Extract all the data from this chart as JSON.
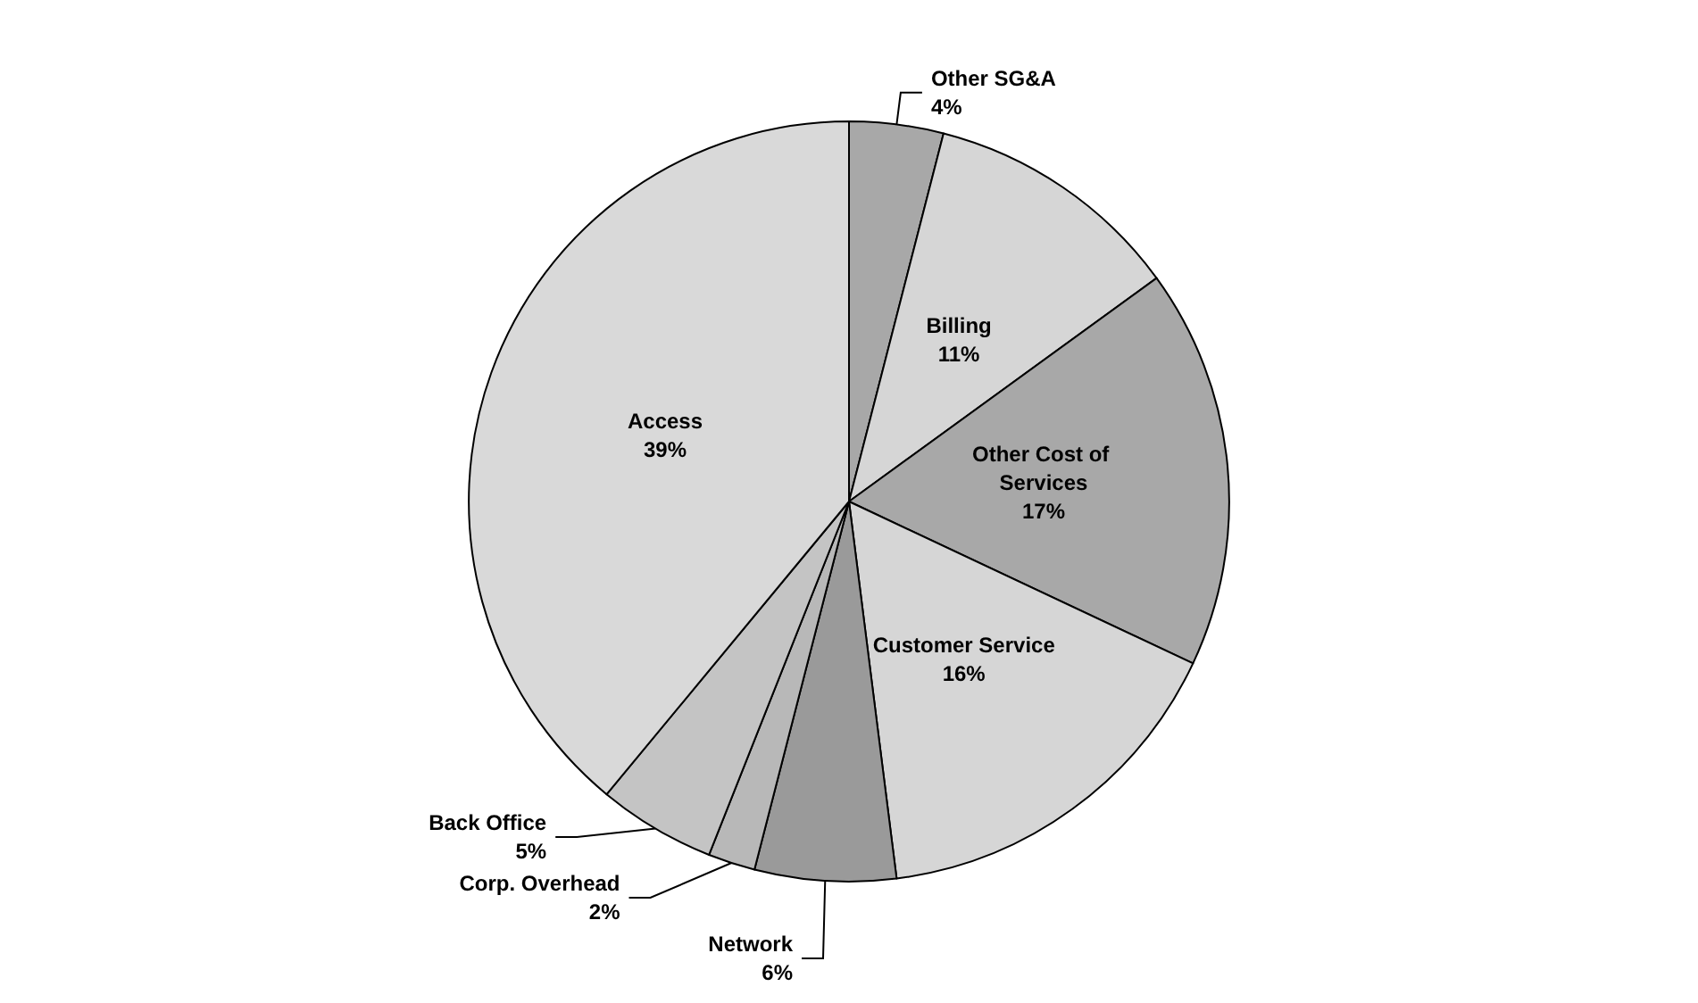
{
  "chart_data": {
    "type": "pie",
    "categories": [
      "Other SG&A",
      "Billing",
      "Other Cost of Services",
      "Customer Service",
      "Network",
      "Corp. Overhead",
      "Back Office",
      "Access"
    ],
    "values": [
      4,
      11,
      17,
      16,
      6,
      2,
      5,
      39
    ],
    "value_labels": [
      "4%",
      "11%",
      "17%",
      "16%",
      "6%",
      "2%",
      "5%",
      "39%"
    ],
    "colors": [
      "#a8a8a8",
      "#d6d6d6",
      "#a8a8a8",
      "#d6d6d6",
      "#9a9a9a",
      "#b8b8b8",
      "#c4c4c4",
      "#d9d9d9"
    ]
  }
}
